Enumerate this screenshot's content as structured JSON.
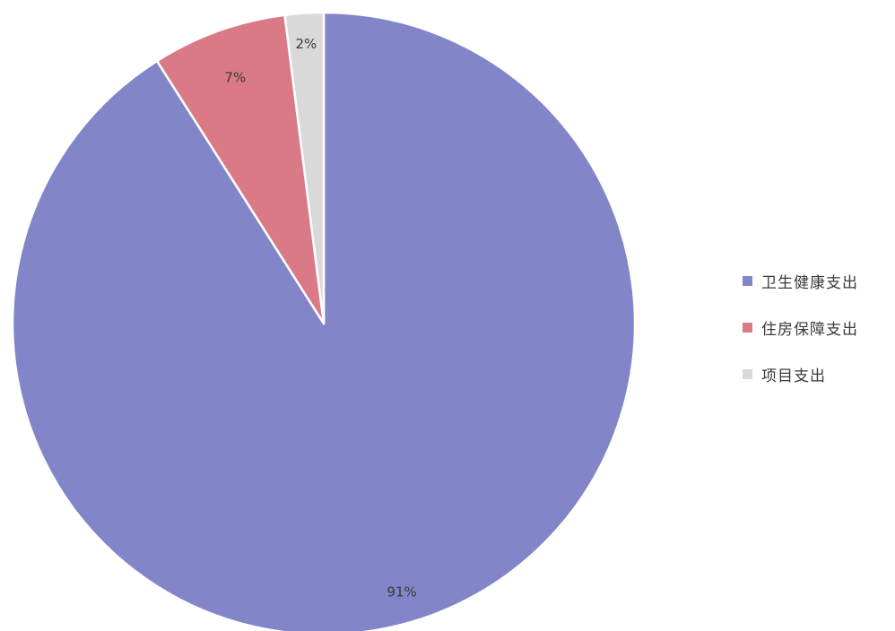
{
  "chart_data": {
    "type": "pie",
    "categories": [
      "卫生健康支出",
      "住房保障支出",
      "项目支出"
    ],
    "values": [
      91,
      7,
      2
    ],
    "data_labels": [
      "91%",
      "7%",
      "2%"
    ],
    "colors": [
      "#8286c9",
      "#d97a86",
      "#d9d9d9"
    ],
    "start_angle_deg": 0,
    "direction": "clockwise",
    "legend_position": "right"
  }
}
